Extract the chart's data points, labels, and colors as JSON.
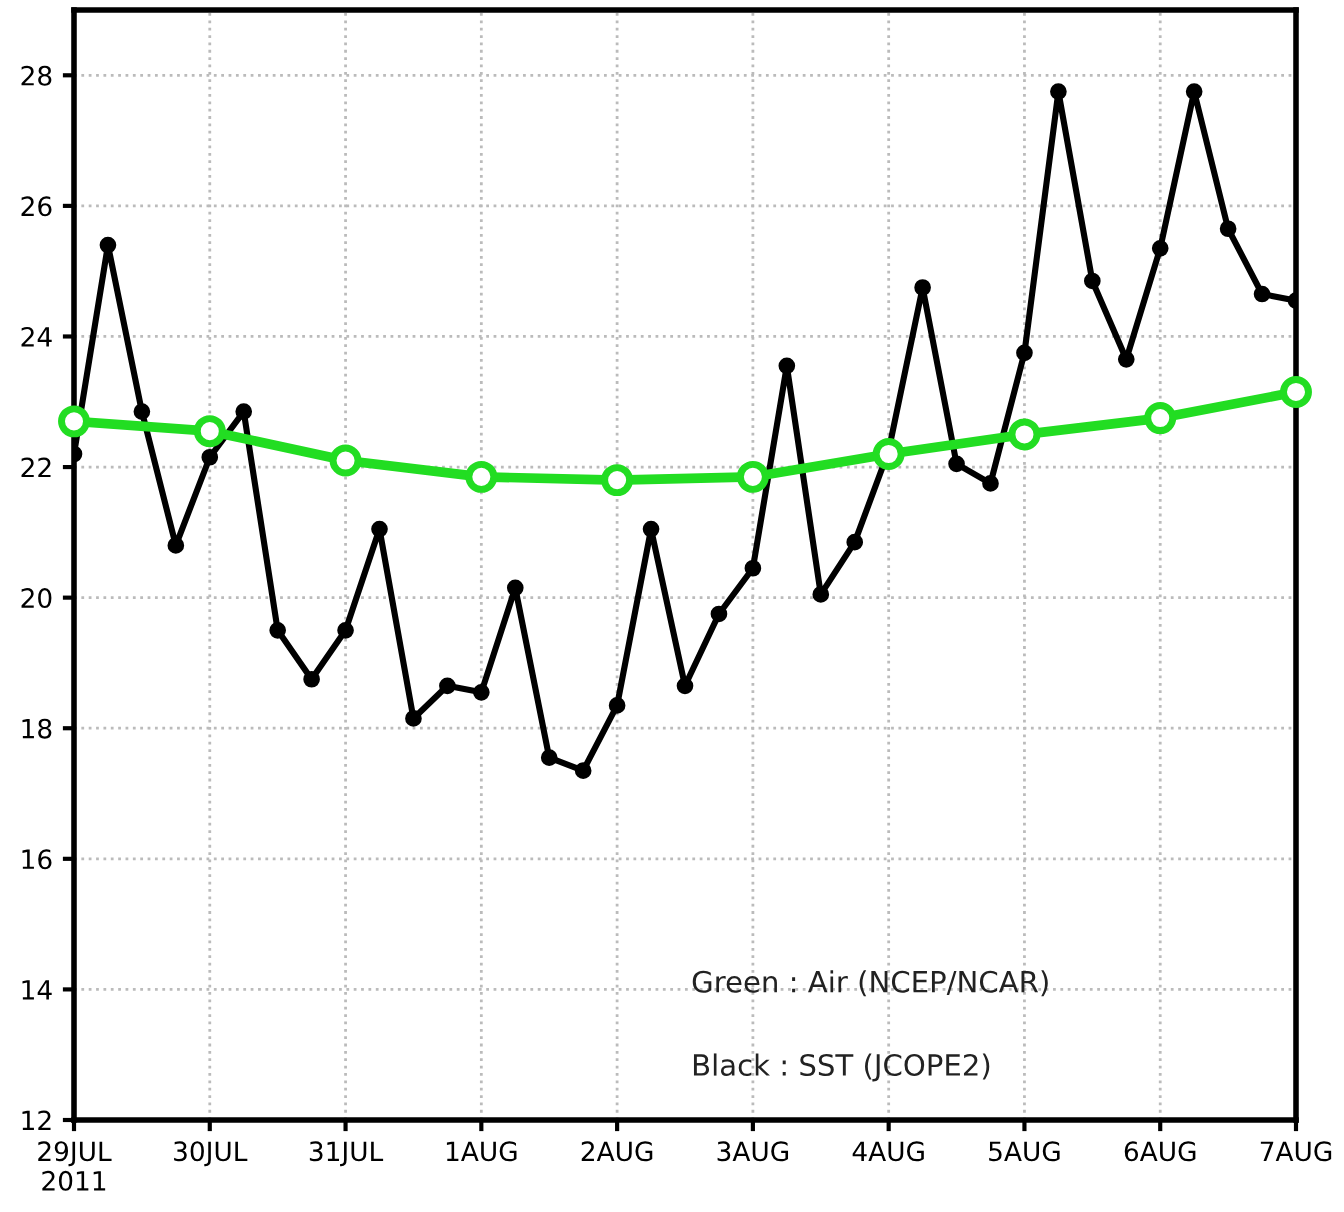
{
  "chart_data": {
    "type": "line",
    "x": [
      "2011-07-29",
      "2011-07-30",
      "2011-07-31",
      "2011-08-01",
      "2011-08-02",
      "2011-08-03",
      "2011-08-04",
      "2011-08-05",
      "2011-08-06",
      "2011-08-07"
    ],
    "series": [
      {
        "color": "#22dd22",
        "marker": "circle",
        "values": [
          22.7,
          22.55,
          22.1,
          21.85,
          21.8,
          21.85,
          22.2,
          22.5,
          22.75,
          23.15
        ]
      },
      {
        "color": "#000000",
        "marker": "circle",
        "x": [
          "2011-07-29T00:00",
          "2011-07-29T06:00",
          "2011-07-29T12:00",
          "2011-07-29T18:00",
          "2011-07-30T00:00",
          "2011-07-30T06:00",
          "2011-07-30T12:00",
          "2011-07-30T18:00",
          "2011-07-31T00:00",
          "2011-07-31T06:00",
          "2011-07-31T12:00",
          "2011-07-31T18:00",
          "2011-08-01T00:00",
          "2011-08-01T06:00",
          "2011-08-01T12:00",
          "2011-08-01T18:00",
          "2011-08-02T00:00",
          "2011-08-02T06:00",
          "2011-08-02T12:00",
          "2011-08-02T18:00",
          "2011-08-03T00:00",
          "2011-08-03T06:00",
          "2011-08-03T12:00",
          "2011-08-03T18:00",
          "2011-08-04T00:00",
          "2011-08-04T06:00",
          "2011-08-04T12:00",
          "2011-08-04T18:00",
          "2011-08-05T00:00",
          "2011-08-05T06:00",
          "2011-08-05T12:00",
          "2011-08-05T18:00",
          "2011-08-06T00:00",
          "2011-08-06T06:00",
          "2011-08-06T12:00",
          "2011-08-06T18:00",
          "2011-08-07T00:00"
        ],
        "values": [
          22.2,
          25.4,
          22.85,
          20.8,
          22.15,
          22.85,
          19.5,
          18.75,
          19.5,
          21.05,
          18.15,
          18.65,
          18.55,
          20.15,
          17.55,
          17.35,
          18.35,
          21.05,
          18.65,
          19.75,
          20.45,
          23.55,
          20.05,
          20.85,
          22.25,
          24.75,
          22.05,
          21.75,
          23.75,
          27.75,
          24.85,
          23.65,
          25.35,
          27.75,
          25.65,
          24.65,
          24.55
        ]
      }
    ],
    "xlim": [
      "2011-07-29",
      "2011-08-07"
    ],
    "xticks": [
      {
        "value": "2011-07-29",
        "label": "29JUL\n2011"
      },
      {
        "value": "2011-07-30",
        "label": "30JUL"
      },
      {
        "value": "2011-07-31",
        "label": "31JUL"
      },
      {
        "value": "2011-08-01",
        "label": "1AUG"
      },
      {
        "value": "2011-08-02",
        "label": "2AUG"
      },
      {
        "value": "2011-08-03",
        "label": "3AUG"
      },
      {
        "value": "2011-08-04",
        "label": "4AUG"
      },
      {
        "value": "2011-08-05",
        "label": "5AUG"
      },
      {
        "value": "2011-08-06",
        "label": "6AUG"
      },
      {
        "value": "2011-08-07",
        "label": "7AUG"
      }
    ],
    "ylim": [
      12,
      29
    ],
    "yticks": [
      12,
      14,
      16,
      18,
      20,
      22,
      24,
      26,
      28
    ],
    "grid": true,
    "line_style": "solid",
    "annotations": [
      "Green : Air (NCEP/NCAR)",
      "Black : SST (JCOPE2)"
    ]
  }
}
